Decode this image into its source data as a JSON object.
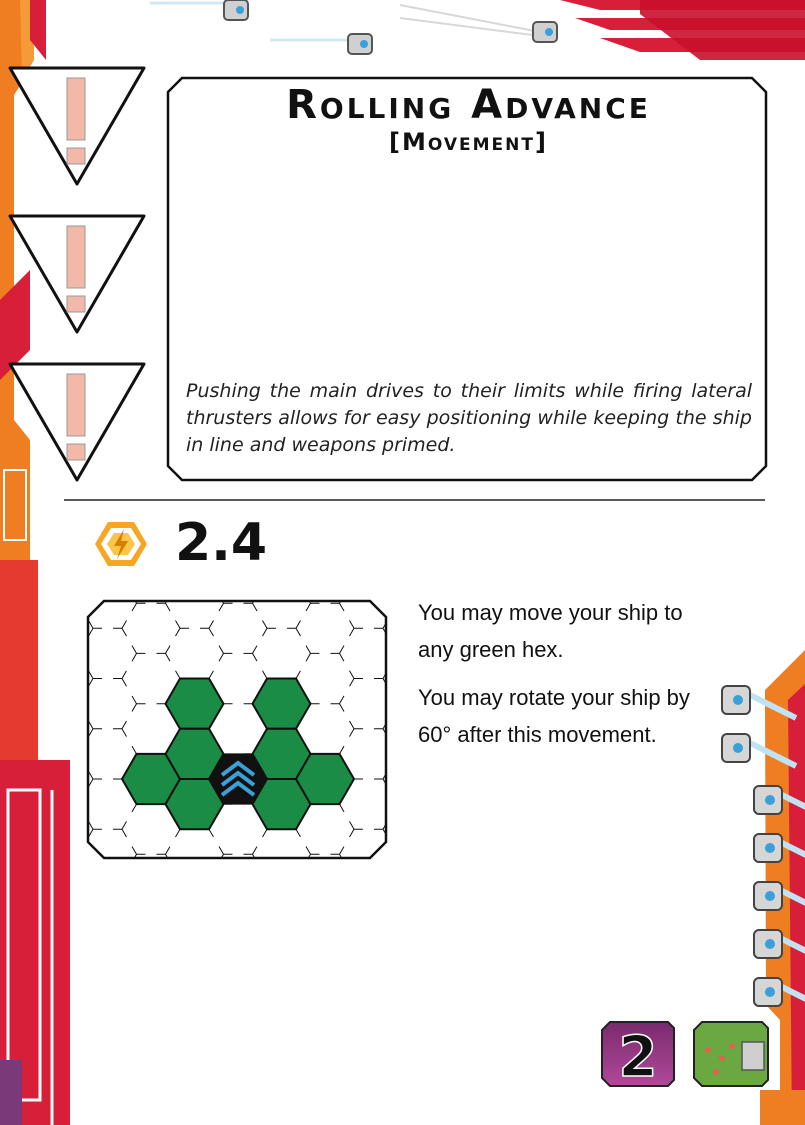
{
  "card": {
    "title": "Rolling Advance",
    "subtitle": "[Movement]",
    "flavor_text": "Pushing the main drives to their limits while firing lateral thrusters allows for easy positioning while keeping the ship in line and weapons primed.",
    "cost": "2.4",
    "rules": [
      "You may move your ship to any green hex.",
      "You may rotate your ship by 60° after this movement."
    ],
    "tier_badge": "2",
    "icons": {
      "cost": "energy-bolt-icon",
      "ship": "chevron-ship-icon",
      "alert": "exclamation-icon",
      "tier": "tier-badge-icon",
      "terrain": "terrain-thumbnail-icon"
    },
    "colors": {
      "accent_red": "#d71f3a",
      "accent_orange": "#ef7d22",
      "hex_green": "#1a8c45",
      "ship_blue": "#3aa0d8",
      "alert_pink": "#f2b8a8"
    }
  }
}
